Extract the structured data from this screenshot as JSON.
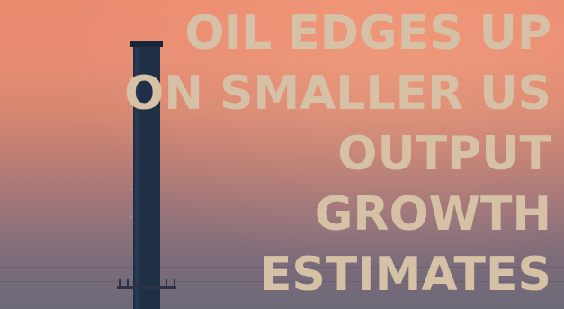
{
  "headline": {
    "lines": [
      "OIL EDGES UP",
      "ON SMALLER US",
      "OUTPUT",
      "GROWTH",
      "ESTIMATES"
    ]
  },
  "colors": {
    "headline_text": "#d6c0a6",
    "sky_top": "#eb8b70",
    "sky_bottom": "#6d6977",
    "chimney": "#1f2f45"
  },
  "image": {
    "subject": "industrial-chimney-at-dusk"
  }
}
